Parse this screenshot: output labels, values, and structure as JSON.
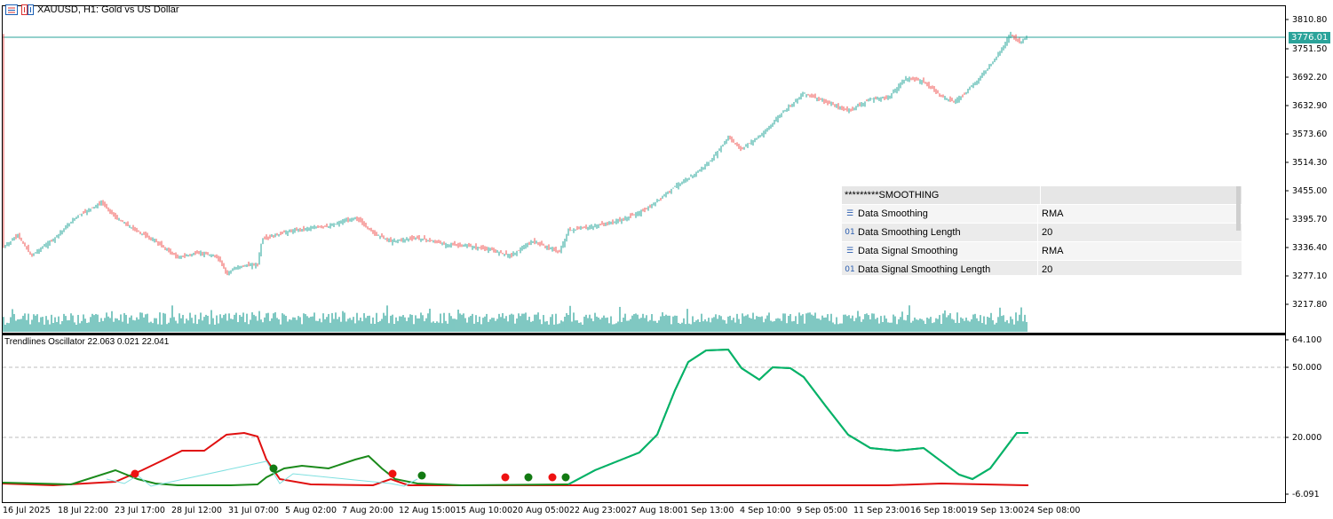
{
  "window": {
    "symbol_title": "XAUUSD, H1:  Gold vs US Dollar",
    "current_price": "3776.01"
  },
  "price_axis": [
    "3810.80",
    "3751.50",
    "3692.20",
    "3632.90",
    "3573.60",
    "3514.30",
    "3455.00",
    "3395.70",
    "3336.40",
    "3277.10",
    "3217.80"
  ],
  "osc_axis": [
    "64.100",
    "50.000",
    "20.000",
    "-6.091"
  ],
  "time_axis": [
    "16 Jul 2025",
    "18 Jul 22:00",
    "23 Jul 17:00",
    "28 Jul 12:00",
    "31 Jul 07:00",
    "5 Aug 02:00",
    "7 Aug 20:00",
    "12 Aug 15:00",
    "15 Aug 10:00",
    "20 Aug 05:00",
    "22 Aug 23:00",
    "27 Aug 18:00",
    "1 Sep 13:00",
    "4 Sep 10:00",
    "9 Sep 05:00",
    "11 Sep 23:00",
    "16 Sep 18:00",
    "19 Sep 13:00",
    "24 Sep 08:00"
  ],
  "oscillator": {
    "title": "Trendlines Oscillator 22.063 0.021 22.041"
  },
  "properties": {
    "header": "*********SMOOTHING",
    "rows": [
      {
        "icon": "list-icon",
        "key": "Data Smoothing",
        "value": "RMA"
      },
      {
        "icon": "01",
        "key": "Data Smoothing Length",
        "value": "20"
      },
      {
        "icon": "list-icon",
        "key": "Data Signal Smoothing",
        "value": "RMA"
      },
      {
        "icon": "01",
        "key": "Data Signal Smoothing Length",
        "value": "20"
      }
    ]
  },
  "colors": {
    "up_candle": "#26a69a",
    "down_candle": "#ef5350",
    "volume": "#2aa39a",
    "osc_green": "#1b8a1b",
    "osc_red": "#e01010",
    "osc_bull": "#00b36b"
  }
}
